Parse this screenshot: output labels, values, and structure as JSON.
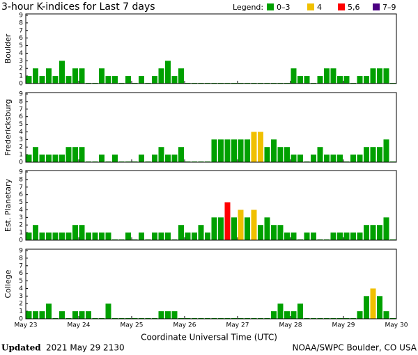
{
  "header": {
    "title": "3-hour K-indices for Last 7 days"
  },
  "legend": {
    "title": "Legend:",
    "entries": [
      {
        "label": "0–3",
        "color": "#00a000",
        "range": [
          0,
          3
        ]
      },
      {
        "label": "4",
        "color": "#f0c000",
        "range": [
          4,
          4
        ]
      },
      {
        "label": "5,6",
        "color": "#ff0000",
        "range": [
          5,
          6
        ]
      },
      {
        "label": "7–9",
        "color": "#4b0082",
        "range": [
          7,
          9
        ]
      }
    ]
  },
  "chart_data": [
    {
      "type": "bar",
      "ylabel": "Boulder",
      "ylim": [
        0,
        9
      ],
      "yticks": [
        0,
        1,
        2,
        3,
        4,
        5,
        6,
        7,
        8,
        9
      ],
      "values": [
        1,
        2,
        1,
        2,
        1,
        3,
        1,
        2,
        2,
        0,
        0,
        2,
        1,
        1,
        0,
        1,
        0,
        1,
        0,
        1,
        2,
        3,
        1,
        2,
        0,
        0,
        0,
        0,
        0,
        0,
        0,
        0,
        0,
        0,
        0,
        0,
        0,
        0,
        0,
        0,
        2,
        1,
        1,
        0,
        1,
        2,
        2,
        1,
        1,
        0,
        1,
        1,
        2,
        2,
        2,
        0
      ]
    },
    {
      "type": "bar",
      "ylabel": "Fredericksburg",
      "ylim": [
        0,
        9
      ],
      "yticks": [
        0,
        1,
        2,
        3,
        4,
        5,
        6,
        7,
        8,
        9
      ],
      "values": [
        1,
        2,
        1,
        1,
        1,
        1,
        2,
        2,
        2,
        0,
        0,
        1,
        0,
        1,
        0,
        0,
        0,
        1,
        0,
        1,
        2,
        1,
        1,
        2,
        0,
        0,
        0,
        0,
        3,
        3,
        3,
        3,
        3,
        3,
        4,
        4,
        2,
        3,
        2,
        2,
        1,
        1,
        0,
        1,
        2,
        1,
        1,
        1,
        0,
        1,
        1,
        2,
        2,
        2,
        3,
        0
      ]
    },
    {
      "type": "bar",
      "ylabel": "Est. Planetary",
      "ylim": [
        0,
        9
      ],
      "yticks": [
        0,
        1,
        2,
        3,
        4,
        5,
        6,
        7,
        8,
        9
      ],
      "values": [
        1,
        2,
        1,
        1,
        1,
        1,
        1,
        2,
        2,
        1,
        1,
        1,
        1,
        0,
        0,
        1,
        0,
        1,
        0,
        1,
        1,
        1,
        0,
        2,
        1,
        1,
        2,
        1,
        3,
        3,
        5,
        3,
        4,
        3,
        4,
        2,
        3,
        2,
        2,
        1,
        1,
        0,
        1,
        1,
        0,
        0,
        1,
        1,
        1,
        1,
        1,
        2,
        2,
        2,
        3,
        0
      ]
    },
    {
      "type": "bar",
      "ylabel": "College",
      "ylim": [
        0,
        9
      ],
      "yticks": [
        0,
        1,
        2,
        3,
        4,
        5,
        6,
        7,
        8,
        9
      ],
      "values": [
        1,
        1,
        1,
        2,
        0,
        1,
        0,
        1,
        1,
        1,
        0,
        0,
        2,
        0,
        0,
        0,
        0,
        0,
        0,
        0,
        1,
        1,
        1,
        0,
        0,
        0,
        0,
        0,
        0,
        0,
        0,
        0,
        0,
        0,
        0,
        0,
        0,
        1,
        2,
        1,
        1,
        2,
        0,
        0,
        0,
        0,
        0,
        0,
        0,
        0,
        1,
        3,
        4,
        3,
        1,
        0
      ]
    }
  ],
  "x_axis": {
    "ticks": [
      "May 23",
      "May 24",
      "May 25",
      "May 26",
      "May 27",
      "May 28",
      "May 29",
      "May 30"
    ],
    "label": "Coordinate Universal Time (UTC)"
  },
  "footer": {
    "updated": "Updated",
    "time": "2021 May 29 2130",
    "source": "NOAA/SWPC Boulder, CO USA"
  }
}
